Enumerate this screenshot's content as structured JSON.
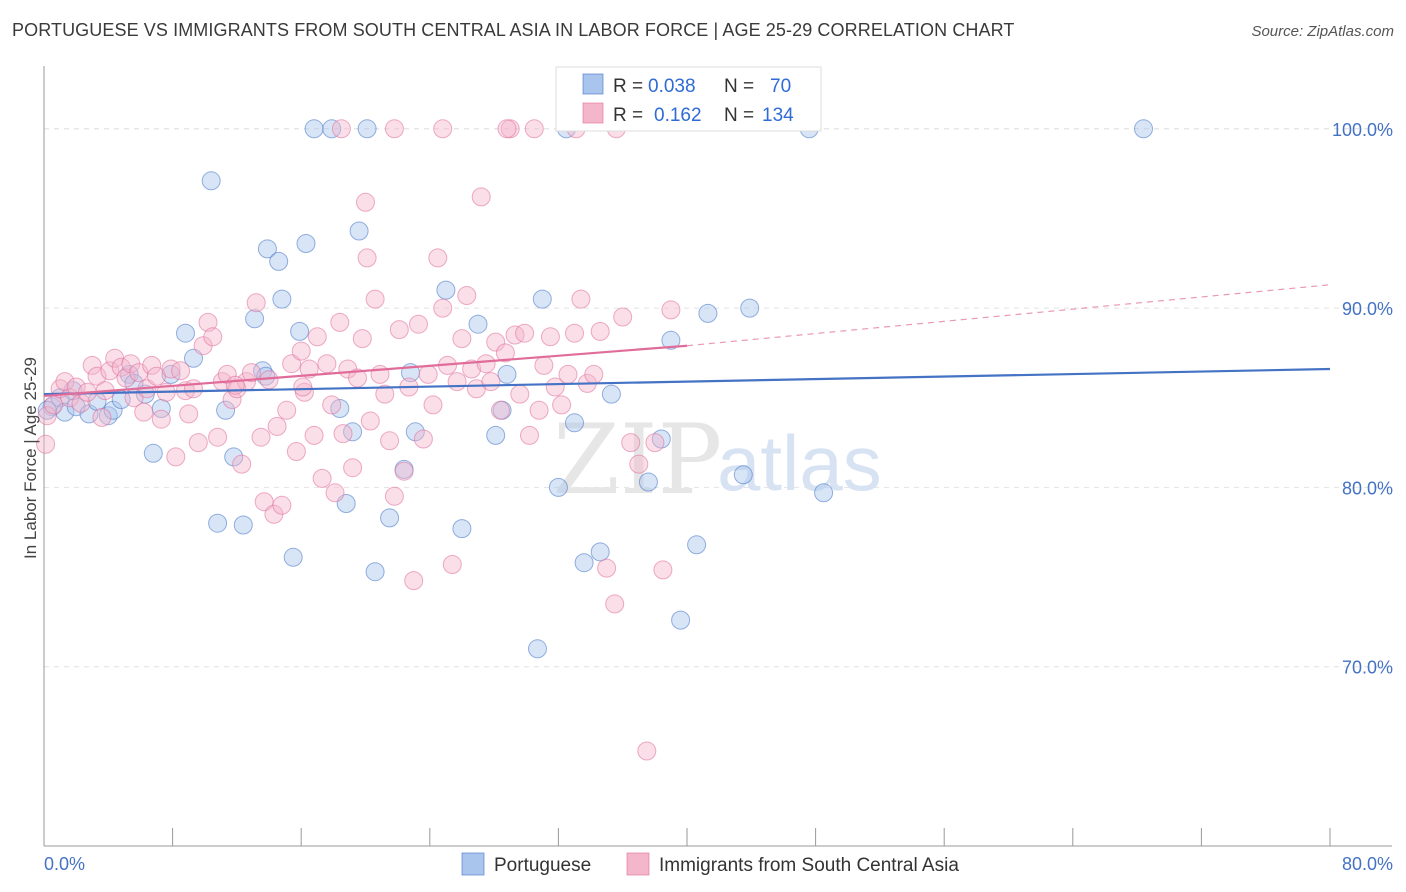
{
  "title": "PORTUGUESE VS IMMIGRANTS FROM SOUTH CENTRAL ASIA IN LABOR FORCE | AGE 25-29 CORRELATION CHART",
  "source": "Source: ZipAtlas.com",
  "watermark": {
    "part1": "ZIP",
    "part2": "atlas"
  },
  "chart_data": {
    "type": "scatter",
    "xlabel": "",
    "ylabel": "In Labor Force | Age 25-29",
    "xlim": [
      0,
      80
    ],
    "ylim": [
      60,
      103.5
    ],
    "x_tick_labels": [
      "0.0%",
      "80.0%"
    ],
    "y_ticks": [
      70,
      80,
      90,
      100
    ],
    "y_tick_labels": [
      "70.0%",
      "80.0%",
      "90.0%",
      "100.0%"
    ],
    "grid": true,
    "legend_position": "top-center",
    "legend": [
      {
        "swatch": "blue",
        "r_label": "R =",
        "r_value": "0.038",
        "n_label": "N =",
        "n_value": "70"
      },
      {
        "swatch": "pink",
        "r_label": "R =",
        "r_value": "0.162",
        "n_label": "N =",
        "n_value": "134"
      }
    ],
    "series": [
      {
        "name": "Portuguese",
        "color": "#4472c4",
        "fill": "#a9c5ee",
        "trend": {
          "x": [
            0,
            80
          ],
          "y": [
            85.2,
            86.6
          ],
          "dashed_extension": false
        },
        "points": [
          [
            0.5,
            84.5
          ],
          [
            1.0,
            85.0
          ],
          [
            1.3,
            84.2
          ],
          [
            2.0,
            84.5
          ],
          [
            2.8,
            84.1
          ],
          [
            3.3,
            84.8
          ],
          [
            4.0,
            84.0
          ],
          [
            4.3,
            84.3
          ],
          [
            4.8,
            84.9
          ],
          [
            5.3,
            86.3
          ],
          [
            5.6,
            85.8
          ],
          [
            6.3,
            85.2
          ],
          [
            6.8,
            81.9
          ],
          [
            7.3,
            84.4
          ],
          [
            7.9,
            86.3
          ],
          [
            8.8,
            88.6
          ],
          [
            9.3,
            87.2
          ],
          [
            10.4,
            97.1
          ],
          [
            10.8,
            78.0
          ],
          [
            11.3,
            84.3
          ],
          [
            11.8,
            81.7
          ],
          [
            12.4,
            77.9
          ],
          [
            13.1,
            89.4
          ],
          [
            13.6,
            86.5
          ],
          [
            13.8,
            86.2
          ],
          [
            13.9,
            93.3
          ],
          [
            14.6,
            92.6
          ],
          [
            14.8,
            90.5
          ],
          [
            15.5,
            76.1
          ],
          [
            15.9,
            88.7
          ],
          [
            16.3,
            93.6
          ],
          [
            16.8,
            100.0
          ],
          [
            17.9,
            100.0
          ],
          [
            18.4,
            84.4
          ],
          [
            18.8,
            79.1
          ],
          [
            19.2,
            83.1
          ],
          [
            19.6,
            94.3
          ],
          [
            20.1,
            100.0
          ],
          [
            20.6,
            75.3
          ],
          [
            21.5,
            78.3
          ],
          [
            22.4,
            81.0
          ],
          [
            22.8,
            86.4
          ],
          [
            23.1,
            83.1
          ],
          [
            25.0,
            91.0
          ],
          [
            26.0,
            77.7
          ],
          [
            27.0,
            89.1
          ],
          [
            28.1,
            82.9
          ],
          [
            28.5,
            84.3
          ],
          [
            28.8,
            86.3
          ],
          [
            30.7,
            71.0
          ],
          [
            31.0,
            90.5
          ],
          [
            32.0,
            80.0
          ],
          [
            33.0,
            83.6
          ],
          [
            33.6,
            75.8
          ],
          [
            34.6,
            76.4
          ],
          [
            35.3,
            85.2
          ],
          [
            37.6,
            80.3
          ],
          [
            38.4,
            82.7
          ],
          [
            39.0,
            88.2
          ],
          [
            39.6,
            72.6
          ],
          [
            40.6,
            76.8
          ],
          [
            41.3,
            89.7
          ],
          [
            43.5,
            80.7
          ],
          [
            43.9,
            90.0
          ],
          [
            47.6,
            100.0
          ],
          [
            48.5,
            79.7
          ],
          [
            68.4,
            100.0
          ],
          [
            32.5,
            100.0
          ],
          [
            0.2,
            84.3
          ],
          [
            1.8,
            85.4
          ]
        ]
      },
      {
        "name": "Immigrants from South Central Asia",
        "color": "#e06c9a",
        "fill": "#f4b6cb",
        "trend": {
          "x": [
            0,
            40,
            80
          ],
          "y": [
            85.1,
            87.9,
            91.3
          ],
          "solid_until_x": 40
        },
        "points": [
          [
            0.1,
            82.4
          ],
          [
            0.2,
            84.0
          ],
          [
            0.6,
            84.6
          ],
          [
            1.0,
            85.5
          ],
          [
            1.3,
            85.9
          ],
          [
            1.6,
            85.0
          ],
          [
            2.0,
            85.6
          ],
          [
            2.3,
            84.7
          ],
          [
            2.7,
            85.3
          ],
          [
            3.0,
            86.8
          ],
          [
            3.3,
            86.2
          ],
          [
            3.6,
            83.9
          ],
          [
            3.8,
            85.4
          ],
          [
            4.1,
            86.5
          ],
          [
            4.4,
            87.2
          ],
          [
            4.8,
            86.7
          ],
          [
            5.1,
            86.1
          ],
          [
            5.4,
            86.9
          ],
          [
            5.6,
            85.0
          ],
          [
            5.9,
            86.4
          ],
          [
            6.2,
            84.2
          ],
          [
            6.4,
            85.5
          ],
          [
            6.7,
            86.8
          ],
          [
            7.0,
            86.2
          ],
          [
            7.3,
            83.8
          ],
          [
            7.6,
            85.3
          ],
          [
            7.9,
            86.6
          ],
          [
            8.2,
            81.7
          ],
          [
            8.5,
            86.5
          ],
          [
            8.8,
            85.4
          ],
          [
            9.0,
            84.1
          ],
          [
            9.3,
            85.5
          ],
          [
            9.6,
            82.5
          ],
          [
            9.9,
            87.9
          ],
          [
            10.2,
            89.2
          ],
          [
            10.5,
            88.4
          ],
          [
            10.8,
            82.8
          ],
          [
            11.1,
            85.9
          ],
          [
            11.4,
            86.3
          ],
          [
            11.7,
            84.9
          ],
          [
            12.0,
            85.5
          ],
          [
            12.3,
            81.3
          ],
          [
            12.6,
            85.9
          ],
          [
            12.9,
            86.4
          ],
          [
            13.2,
            90.3
          ],
          [
            13.5,
            82.8
          ],
          [
            13.7,
            79.2
          ],
          [
            14.0,
            86.0
          ],
          [
            14.3,
            78.5
          ],
          [
            14.5,
            83.4
          ],
          [
            14.8,
            79.0
          ],
          [
            15.1,
            84.3
          ],
          [
            15.4,
            86.9
          ],
          [
            15.7,
            82.0
          ],
          [
            16.0,
            87.6
          ],
          [
            16.2,
            85.3
          ],
          [
            16.5,
            86.6
          ],
          [
            16.8,
            82.9
          ],
          [
            17.0,
            88.4
          ],
          [
            17.3,
            80.5
          ],
          [
            17.6,
            86.9
          ],
          [
            17.9,
            84.6
          ],
          [
            18.1,
            79.7
          ],
          [
            18.4,
            89.2
          ],
          [
            18.6,
            83.0
          ],
          [
            18.9,
            86.6
          ],
          [
            19.2,
            81.1
          ],
          [
            19.5,
            86.1
          ],
          [
            19.8,
            88.3
          ],
          [
            20.0,
            95.9
          ],
          [
            20.1,
            92.8
          ],
          [
            20.3,
            83.7
          ],
          [
            20.6,
            90.5
          ],
          [
            20.9,
            86.3
          ],
          [
            21.2,
            85.2
          ],
          [
            21.5,
            82.6
          ],
          [
            21.8,
            79.5
          ],
          [
            22.1,
            88.8
          ],
          [
            22.4,
            80.9
          ],
          [
            22.7,
            85.6
          ],
          [
            23.0,
            74.8
          ],
          [
            23.3,
            89.1
          ],
          [
            23.6,
            82.7
          ],
          [
            23.9,
            86.3
          ],
          [
            24.2,
            84.6
          ],
          [
            24.5,
            92.8
          ],
          [
            24.8,
            90.0
          ],
          [
            25.1,
            86.8
          ],
          [
            25.4,
            75.7
          ],
          [
            25.7,
            85.9
          ],
          [
            26.0,
            88.3
          ],
          [
            26.3,
            90.7
          ],
          [
            26.6,
            86.6
          ],
          [
            26.9,
            85.5
          ],
          [
            27.2,
            96.2
          ],
          [
            27.5,
            86.9
          ],
          [
            27.8,
            85.9
          ],
          [
            28.1,
            88.1
          ],
          [
            28.4,
            84.3
          ],
          [
            28.7,
            87.5
          ],
          [
            29.0,
            100.0
          ],
          [
            29.3,
            88.5
          ],
          [
            29.6,
            85.2
          ],
          [
            29.9,
            88.6
          ],
          [
            30.2,
            82.9
          ],
          [
            30.5,
            100.0
          ],
          [
            30.8,
            84.3
          ],
          [
            31.1,
            86.8
          ],
          [
            31.5,
            88.4
          ],
          [
            31.8,
            85.6
          ],
          [
            32.2,
            84.6
          ],
          [
            32.6,
            86.3
          ],
          [
            33.0,
            88.6
          ],
          [
            33.4,
            90.5
          ],
          [
            33.8,
            85.8
          ],
          [
            34.2,
            86.3
          ],
          [
            34.6,
            88.7
          ],
          [
            35.0,
            75.5
          ],
          [
            35.5,
            73.5
          ],
          [
            36.0,
            89.5
          ],
          [
            36.5,
            82.5
          ],
          [
            37.0,
            81.3
          ],
          [
            37.5,
            65.3
          ],
          [
            38.0,
            82.5
          ],
          [
            38.5,
            75.4
          ],
          [
            39.0,
            89.9
          ],
          [
            18.5,
            100.0
          ],
          [
            21.8,
            100.0
          ],
          [
            24.8,
            100.0
          ],
          [
            28.8,
            100.0
          ],
          [
            33.1,
            100.0
          ],
          [
            35.6,
            100.0
          ],
          [
            11.9,
            85.7
          ],
          [
            16.1,
            85.6
          ]
        ]
      }
    ]
  }
}
